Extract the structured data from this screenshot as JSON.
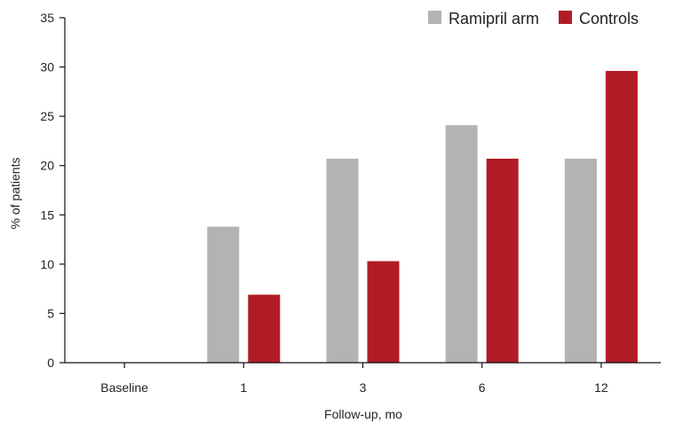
{
  "chart_data": {
    "type": "bar",
    "title": "",
    "xlabel": "Follow-up, mo",
    "ylabel": "% of patients",
    "categories": [
      "Baseline",
      "1",
      "3",
      "6",
      "12"
    ],
    "ylim": [
      0,
      35
    ],
    "yticks": [
      0,
      5,
      10,
      15,
      20,
      25,
      30,
      35
    ],
    "grid": false,
    "legend_position": "top-right",
    "series": [
      {
        "name": "Ramipril arm",
        "color": "#b3b3b3",
        "values": [
          0,
          13.8,
          20.7,
          24.1,
          20.7
        ]
      },
      {
        "name": "Controls",
        "color": "#b01c26",
        "values": [
          0,
          6.9,
          10.3,
          20.7,
          29.6
        ]
      }
    ]
  }
}
